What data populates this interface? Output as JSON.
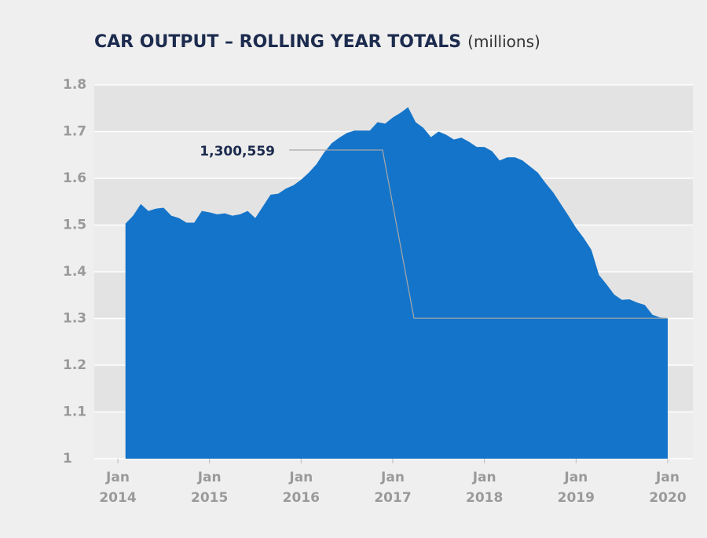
{
  "chart_data": {
    "type": "area",
    "title": "CAR OUTPUT – ROLLING YEAR TOTALS",
    "subtitle": "(millions)",
    "annotation": "1,300,559",
    "color": "#1474c9",
    "grid": true,
    "x": [
      "2014-02",
      "2014-03",
      "2014-04",
      "2014-05",
      "2014-06",
      "2014-07",
      "2014-08",
      "2014-09",
      "2014-10",
      "2014-11",
      "2014-12",
      "2015-01",
      "2015-02",
      "2015-03",
      "2015-04",
      "2015-05",
      "2015-06",
      "2015-07",
      "2015-08",
      "2015-09",
      "2015-10",
      "2015-11",
      "2015-12",
      "2016-01",
      "2016-02",
      "2016-03",
      "2016-04",
      "2016-05",
      "2016-06",
      "2016-07",
      "2016-08",
      "2016-09",
      "2016-10",
      "2016-11",
      "2016-12",
      "2017-01",
      "2017-02",
      "2017-03",
      "2017-04",
      "2017-05",
      "2017-06",
      "2017-07",
      "2017-08",
      "2017-09",
      "2017-10",
      "2017-11",
      "2017-12",
      "2018-01",
      "2018-02",
      "2018-03",
      "2018-04",
      "2018-05",
      "2018-06",
      "2018-07",
      "2018-08",
      "2018-09",
      "2018-10",
      "2018-11",
      "2018-12",
      "2019-01",
      "2019-02",
      "2019-03",
      "2019-04",
      "2019-05",
      "2019-06",
      "2019-07",
      "2019-08",
      "2019-09",
      "2019-10",
      "2019-11",
      "2019-12",
      "2020-01"
    ],
    "values": [
      1.503,
      1.52,
      1.545,
      1.53,
      1.535,
      1.537,
      1.52,
      1.515,
      1.505,
      1.505,
      1.53,
      1.527,
      1.523,
      1.525,
      1.52,
      1.523,
      1.53,
      1.515,
      1.54,
      1.565,
      1.567,
      1.578,
      1.585,
      1.597,
      1.612,
      1.63,
      1.655,
      1.675,
      1.687,
      1.697,
      1.702,
      1.702,
      1.702,
      1.72,
      1.717,
      1.73,
      1.74,
      1.752,
      1.72,
      1.708,
      1.688,
      1.7,
      1.693,
      1.683,
      1.687,
      1.678,
      1.667,
      1.667,
      1.658,
      1.638,
      1.645,
      1.645,
      1.638,
      1.625,
      1.612,
      1.59,
      1.57,
      1.545,
      1.52,
      1.494,
      1.472,
      1.447,
      1.393,
      1.373,
      1.351,
      1.34,
      1.341,
      1.334,
      1.329,
      1.308,
      1.302,
      1.300559
    ],
    "ylim": [
      1,
      1.8
    ],
    "yticks": [
      1,
      1.1,
      1.2,
      1.3,
      1.4,
      1.5,
      1.6,
      1.7,
      1.8
    ],
    "xlim": [
      "2014-01",
      "2020-01"
    ],
    "xticks": [
      {
        "value": "2014-01",
        "month": "Jan",
        "year": "2014"
      },
      {
        "value": "2015-01",
        "month": "Jan",
        "year": "2015"
      },
      {
        "value": "2016-01",
        "month": "Jan",
        "year": "2016"
      },
      {
        "value": "2017-01",
        "month": "Jan",
        "year": "2017"
      },
      {
        "value": "2018-01",
        "month": "Jan",
        "year": "2018"
      },
      {
        "value": "2019-01",
        "month": "Jan",
        "year": "2019"
      },
      {
        "value": "2020-01",
        "month": "Jan",
        "year": "2020"
      }
    ]
  }
}
